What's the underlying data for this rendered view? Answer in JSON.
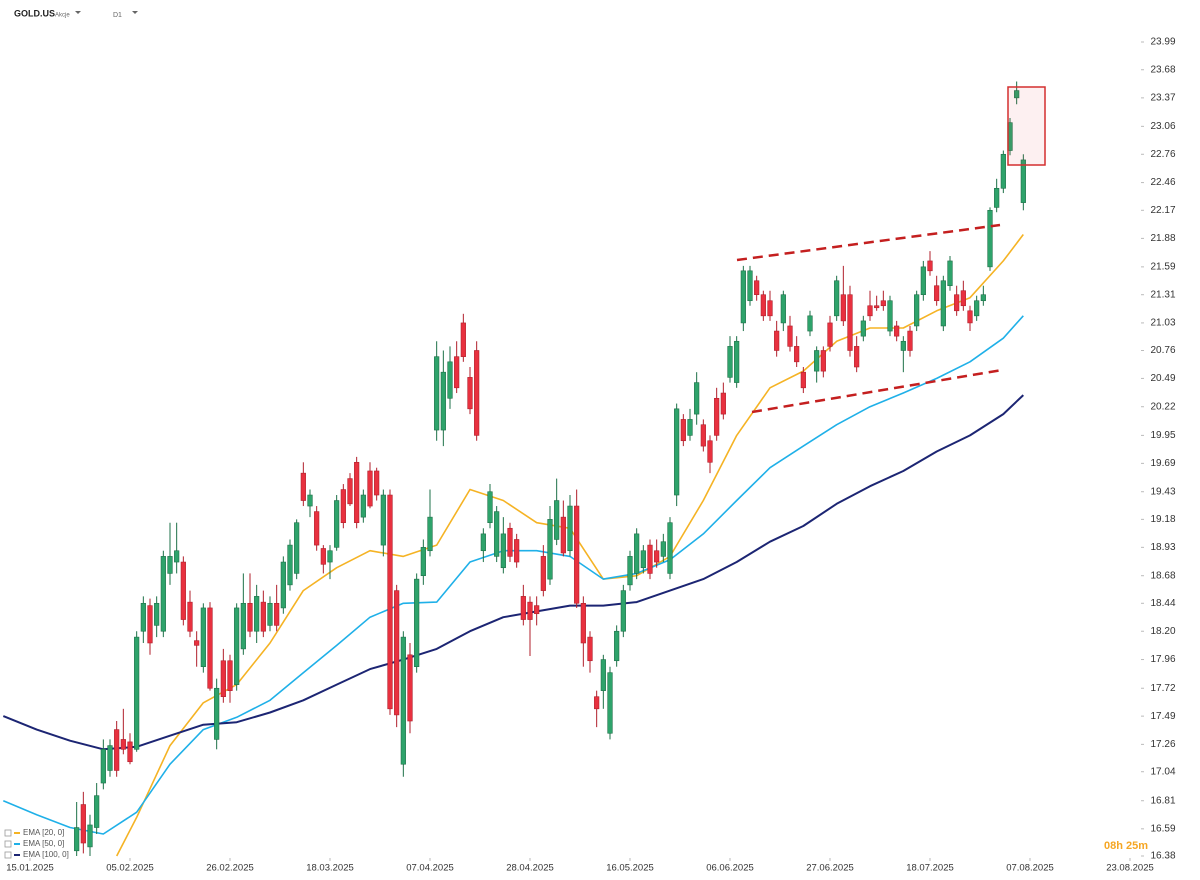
{
  "header": {
    "symbol": "GOLD.US",
    "asset_class": "Akcje",
    "interval": "D1"
  },
  "timer": "08h 25m",
  "chart_data": {
    "type": "candlestick",
    "log_scale": true,
    "grid": false,
    "legend": "bottom-left",
    "up_color": "#2ea36b",
    "down_color": "#e8313f",
    "x": [
      7,
      8,
      9,
      10,
      11,
      12,
      13,
      14,
      15,
      16,
      17,
      18,
      19,
      20,
      21,
      22,
      23,
      24,
      25,
      26,
      27,
      28,
      29,
      30,
      31,
      32,
      33,
      34,
      35,
      36,
      37,
      38,
      39,
      40,
      41,
      42,
      43,
      44,
      45,
      46,
      47,
      48,
      49,
      50,
      51,
      52,
      53,
      54,
      55,
      56,
      57,
      58,
      59,
      60,
      61,
      62,
      63,
      64,
      65,
      66,
      67,
      68,
      69,
      70,
      71,
      72,
      73,
      74,
      75,
      76,
      77,
      78,
      79,
      80,
      81,
      82,
      83,
      84,
      85,
      86,
      87,
      88,
      89,
      90,
      91,
      92,
      93,
      94,
      95,
      96,
      97,
      98,
      99,
      100,
      101,
      102,
      103,
      104,
      105,
      106,
      107,
      108,
      109,
      110,
      111,
      112,
      113,
      114,
      115,
      116,
      117,
      118,
      119,
      120,
      121,
      122,
      123,
      124,
      125,
      126,
      127,
      128,
      129,
      130,
      131,
      132,
      133,
      134,
      135,
      136,
      137,
      138,
      139,
      140,
      141,
      142,
      143,
      144,
      145,
      146,
      147,
      148,
      149
    ],
    "open": [
      16.42,
      16.78,
      16.45,
      16.6,
      16.95,
      17.05,
      17.38,
      17.3,
      17.28,
      17.22,
      18.2,
      18.42,
      18.25,
      18.2,
      18.7,
      18.8,
      18.8,
      18.45,
      18.12,
      17.9,
      18.4,
      17.3,
      17.95,
      17.95,
      17.75,
      18.05,
      18.44,
      18.2,
      18.45,
      18.25,
      18.44,
      18.4,
      18.6,
      18.7,
      19.6,
      19.3,
      19.25,
      18.92,
      18.8,
      18.93,
      19.45,
      19.55,
      19.7,
      19.2,
      19.62,
      19.62,
      18.95,
      19.4,
      18.55,
      17.1,
      18.0,
      17.9,
      18.68,
      18.9,
      20.0,
      20.0,
      20.3,
      20.7,
      21.03,
      20.5,
      20.76,
      18.9,
      19.15,
      18.85,
      18.75,
      19.1,
      19.0,
      18.5,
      18.45,
      18.42,
      18.85,
      18.65,
      19.0,
      19.2,
      18.9,
      19.3,
      18.44,
      18.15,
      17.65,
      17.7,
      17.35,
      17.95,
      18.2,
      18.6,
      18.7,
      18.75,
      18.95,
      18.9,
      18.85,
      18.7,
      19.4,
      20.1,
      19.95,
      20.15,
      20.05,
      19.9,
      20.3,
      20.35,
      20.5,
      20.45,
      21.03,
      21.25,
      21.45,
      21.31,
      21.25,
      20.95,
      21.03,
      21.0,
      20.8,
      20.55,
      20.95,
      20.56,
      20.76,
      21.03,
      21.1,
      21.31,
      21.31,
      20.8,
      20.9,
      21.2,
      21.2,
      21.25,
      20.95,
      21.0,
      20.76,
      20.95,
      21.0,
      21.31,
      21.65,
      21.4,
      21.0,
      21.4,
      21.31,
      21.35,
      21.15,
      21.1,
      21.25,
      21.59,
      22.2,
      22.4,
      22.8,
      23.37,
      22.25
    ],
    "high": [
      16.8,
      16.88,
      16.7,
      16.95,
      17.3,
      17.3,
      17.45,
      17.55,
      17.35,
      18.2,
      18.5,
      18.48,
      18.5,
      18.9,
      19.15,
      19.15,
      18.85,
      18.55,
      18.2,
      18.44,
      18.45,
      17.8,
      18.05,
      18.0,
      18.44,
      18.7,
      18.7,
      18.6,
      18.55,
      18.5,
      18.6,
      18.85,
      19.0,
      19.18,
      19.7,
      19.45,
      19.3,
      18.95,
      18.95,
      19.4,
      19.5,
      19.6,
      19.75,
      19.45,
      19.7,
      19.65,
      19.45,
      19.45,
      18.6,
      18.2,
      18.1,
      18.7,
      19.0,
      19.45,
      20.85,
      20.76,
      20.8,
      20.85,
      21.12,
      20.6,
      20.85,
      19.1,
      19.5,
      19.3,
      19.2,
      19.15,
      19.05,
      18.6,
      18.5,
      18.5,
      18.95,
      19.3,
      19.55,
      19.35,
      19.4,
      19.45,
      18.5,
      18.2,
      17.7,
      18.0,
      17.9,
      18.25,
      18.6,
      18.9,
      19.1,
      18.95,
      19.0,
      19.0,
      19.05,
      19.2,
      20.25,
      20.15,
      20.2,
      20.55,
      20.1,
      19.95,
      20.4,
      20.45,
      20.9,
      20.9,
      21.6,
      21.6,
      21.5,
      21.35,
      21.35,
      21.05,
      21.35,
      21.1,
      20.9,
      20.6,
      21.15,
      20.8,
      20.8,
      21.1,
      21.5,
      21.6,
      21.4,
      20.9,
      21.1,
      21.35,
      21.3,
      21.35,
      21.3,
      21.05,
      20.9,
      21.0,
      21.35,
      21.65,
      21.75,
      21.5,
      21.5,
      21.7,
      21.4,
      21.45,
      21.2,
      21.3,
      21.4,
      22.2,
      22.5,
      22.8,
      23.15,
      23.55,
      22.76
    ],
    "low": [
      16.38,
      16.4,
      16.38,
      16.55,
      16.9,
      17.0,
      17.0,
      17.18,
      17.1,
      17.2,
      18.1,
      18.0,
      18.15,
      18.15,
      18.6,
      18.7,
      18.25,
      18.15,
      17.9,
      17.85,
      17.7,
      17.22,
      17.6,
      17.6,
      17.7,
      18.0,
      18.15,
      18.1,
      18.15,
      18.2,
      18.2,
      18.35,
      18.55,
      18.65,
      19.3,
      19.2,
      18.9,
      18.7,
      18.65,
      18.9,
      19.1,
      19.3,
      19.1,
      19.15,
      19.28,
      19.35,
      18.85,
      17.5,
      17.4,
      17.0,
      17.35,
      17.85,
      18.6,
      18.85,
      19.9,
      19.85,
      20.2,
      20.35,
      20.65,
      20.15,
      19.9,
      18.8,
      19.1,
      18.8,
      18.7,
      18.8,
      18.75,
      18.25,
      17.99,
      18.25,
      18.5,
      18.6,
      18.95,
      18.85,
      18.85,
      18.4,
      17.9,
      17.85,
      17.4,
      17.55,
      17.3,
      17.9,
      18.15,
      18.55,
      18.65,
      18.7,
      18.65,
      18.75,
      18.8,
      18.65,
      19.3,
      19.85,
      19.9,
      20.05,
      19.8,
      19.6,
      19.9,
      20.1,
      20.45,
      20.4,
      20.95,
      21.2,
      21.25,
      21.05,
      21.05,
      20.7,
      20.95,
      20.75,
      20.6,
      20.35,
      20.9,
      20.45,
      20.5,
      20.75,
      21.05,
      21.0,
      20.7,
      20.55,
      20.85,
      21.05,
      21.15,
      21.15,
      20.9,
      20.85,
      20.55,
      20.7,
      20.95,
      21.25,
      21.5,
      21.2,
      20.95,
      21.35,
      21.1,
      21.15,
      20.95,
      21.05,
      21.2,
      21.55,
      22.15,
      22.35,
      22.75,
      23.3,
      22.17
    ],
    "close": [
      16.6,
      16.48,
      16.62,
      16.85,
      17.22,
      17.25,
      17.05,
      17.22,
      17.12,
      18.15,
      18.44,
      18.1,
      18.44,
      18.85,
      18.85,
      18.9,
      18.3,
      18.2,
      18.08,
      18.4,
      17.72,
      17.72,
      17.65,
      17.7,
      18.4,
      18.44,
      18.2,
      18.5,
      18.2,
      18.44,
      18.25,
      18.8,
      18.95,
      19.15,
      19.35,
      19.4,
      18.95,
      18.78,
      18.9,
      19.35,
      19.15,
      19.32,
      19.15,
      19.4,
      19.3,
      19.4,
      19.4,
      17.55,
      17.5,
      18.15,
      17.45,
      18.65,
      18.93,
      19.2,
      20.7,
      20.55,
      20.65,
      20.4,
      20.7,
      20.2,
      19.95,
      19.05,
      19.43,
      19.25,
      19.05,
      18.85,
      18.8,
      18.3,
      18.3,
      18.35,
      18.55,
      19.18,
      19.35,
      18.88,
      19.3,
      18.44,
      18.1,
      17.95,
      17.55,
      17.96,
      17.85,
      18.2,
      18.55,
      18.85,
      19.05,
      18.9,
      18.7,
      18.8,
      18.98,
      19.15,
      20.2,
      19.9,
      20.1,
      20.45,
      19.85,
      19.7,
      19.95,
      20.15,
      20.8,
      20.85,
      21.55,
      21.55,
      21.31,
      21.1,
      21.1,
      20.76,
      21.31,
      20.8,
      20.65,
      20.4,
      21.1,
      20.76,
      20.56,
      20.8,
      21.45,
      21.05,
      20.76,
      20.6,
      21.05,
      21.1,
      21.18,
      21.2,
      21.25,
      20.9,
      20.85,
      20.76,
      21.31,
      21.59,
      21.55,
      21.25,
      21.45,
      21.65,
      21.15,
      21.2,
      21.03,
      21.25,
      21.31,
      22.17,
      22.4,
      22.76,
      23.1,
      23.45,
      22.7
    ],
    "series": [
      {
        "name": "EMA [20, 0]",
        "color": "#f5b324",
        "x": [
          13,
          16,
          21,
          26,
          31,
          36,
          41,
          46,
          51,
          56,
          61,
          66,
          71,
          76,
          81,
          86,
          91,
          96,
          101,
          106,
          111,
          116,
          121,
          126,
          131,
          136,
          141,
          146,
          149
        ],
        "values": [
          16.38,
          16.68,
          17.25,
          17.6,
          17.75,
          18.1,
          18.55,
          18.75,
          18.9,
          18.85,
          18.95,
          19.45,
          19.35,
          19.15,
          19.1,
          18.65,
          18.68,
          18.85,
          19.35,
          19.95,
          20.4,
          20.56,
          20.85,
          20.98,
          20.98,
          21.15,
          21.28,
          21.65,
          21.92
        ]
      },
      {
        "name": "EMA [50, 0]",
        "color": "#1fb0e8",
        "x": [
          -4,
          1,
          6,
          11,
          16,
          21,
          26,
          31,
          36,
          41,
          46,
          51,
          56,
          61,
          66,
          71,
          76,
          81,
          86,
          91,
          96,
          101,
          106,
          111,
          116,
          121,
          126,
          131,
          136,
          141,
          146,
          149
        ],
        "values": [
          16.81,
          16.7,
          16.6,
          16.55,
          16.72,
          17.1,
          17.38,
          17.48,
          17.62,
          17.85,
          18.08,
          18.32,
          18.44,
          18.45,
          18.8,
          18.9,
          18.9,
          18.85,
          18.65,
          18.7,
          18.82,
          19.05,
          19.35,
          19.65,
          19.85,
          20.05,
          20.22,
          20.35,
          20.49,
          20.65,
          20.88,
          21.1
        ]
      },
      {
        "name": "EMA [100, 0]",
        "color": "#1c2573",
        "x": [
          -4,
          1,
          6,
          11,
          16,
          21,
          26,
          31,
          36,
          41,
          46,
          51,
          56,
          61,
          66,
          71,
          76,
          81,
          86,
          91,
          96,
          101,
          106,
          111,
          116,
          121,
          126,
          131,
          136,
          141,
          146,
          149
        ],
        "values": [
          17.49,
          17.38,
          17.29,
          17.22,
          17.24,
          17.33,
          17.42,
          17.44,
          17.52,
          17.62,
          17.75,
          17.88,
          17.96,
          18.05,
          18.2,
          18.32,
          18.37,
          18.42,
          18.42,
          18.45,
          18.55,
          18.65,
          18.8,
          18.98,
          19.12,
          19.32,
          19.48,
          19.62,
          19.8,
          19.95,
          20.15,
          20.33
        ]
      }
    ],
    "xlim": [
      -4.5,
      166.5
    ],
    "xticks": [
      {
        "value": 0,
        "label": "15.01.2025"
      },
      {
        "value": 15,
        "label": "05.02.2025"
      },
      {
        "value": 30,
        "label": "26.02.2025"
      },
      {
        "value": 45,
        "label": "18.03.2025"
      },
      {
        "value": 60,
        "label": "07.04.2025"
      },
      {
        "value": 75,
        "label": "28.04.2025"
      },
      {
        "value": 90,
        "label": "16.05.2025"
      },
      {
        "value": 105,
        "label": "06.06.2025"
      },
      {
        "value": 120,
        "label": "27.06.2025"
      },
      {
        "value": 135,
        "label": "18.07.2025"
      },
      {
        "value": 150,
        "label": "07.08.2025"
      },
      {
        "value": 165,
        "label": "23.08.2025"
      }
    ],
    "ylim": [
      16.38,
      23.99
    ],
    "yticks": [
      23.99,
      23.68,
      23.37,
      23.06,
      22.76,
      22.46,
      22.17,
      21.88,
      21.59,
      21.31,
      21.03,
      20.76,
      20.49,
      20.22,
      19.95,
      19.69,
      19.43,
      19.18,
      18.93,
      18.68,
      18.44,
      {
        "value": 18.2,
        "label": "18.20"
      },
      17.96,
      17.72,
      17.49,
      17.26,
      17.04,
      16.81,
      16.59,
      16.38
    ]
  }
}
